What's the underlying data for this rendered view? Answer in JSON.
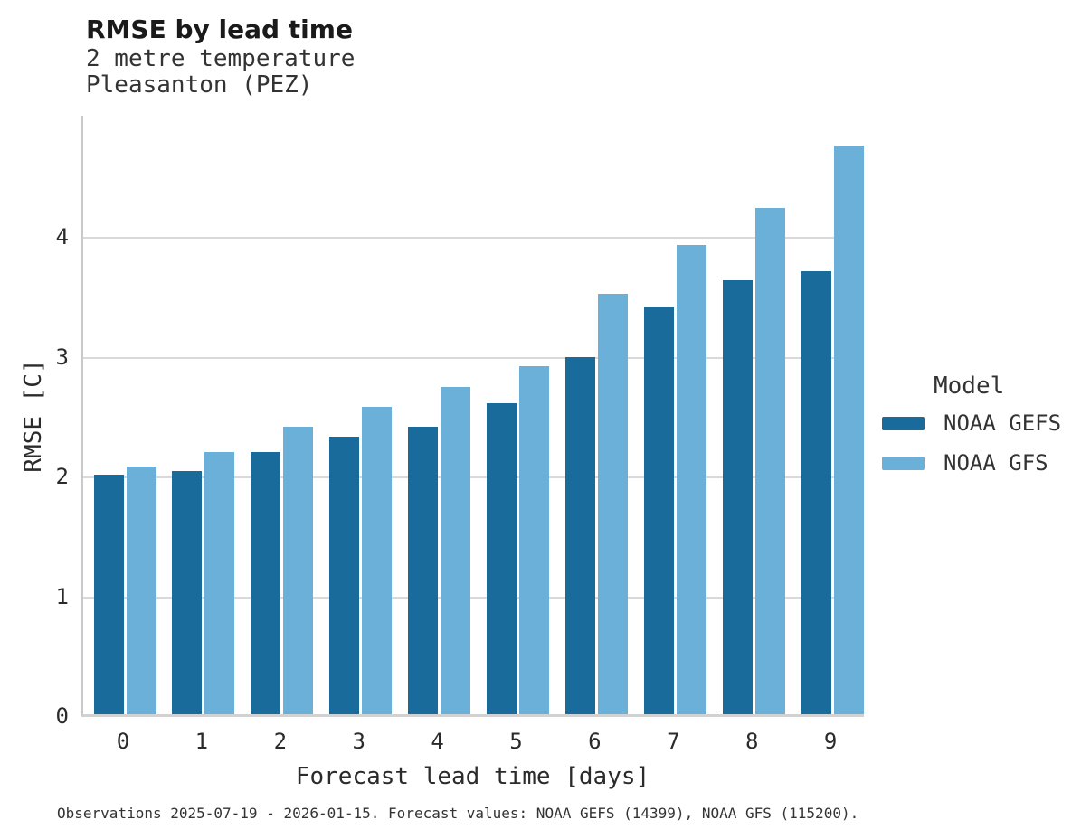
{
  "chart_data": {
    "type": "bar",
    "title": "RMSE by lead time",
    "subtitle": [
      "2 metre temperature",
      "Pleasanton (PEZ)"
    ],
    "categories": [
      "0",
      "1",
      "2",
      "3",
      "4",
      "5",
      "6",
      "7",
      "8",
      "9"
    ],
    "series": [
      {
        "name": "NOAA GEFS",
        "color": "#196B9B",
        "values": [
          2.0,
          2.03,
          2.19,
          2.32,
          2.4,
          2.6,
          2.98,
          3.4,
          3.62,
          3.7
        ]
      },
      {
        "name": "NOAA GFS",
        "color": "#6BB0D9",
        "values": [
          2.07,
          2.19,
          2.4,
          2.57,
          2.73,
          2.91,
          3.51,
          3.92,
          4.23,
          4.75
        ]
      }
    ],
    "xlabel": "Forecast lead time [days]",
    "ylabel": "RMSE [C]",
    "ylim": [
      0,
      5.02
    ],
    "yticks": [
      0,
      1,
      2,
      3,
      4
    ],
    "grid": "horizontal",
    "legend_title": "Model",
    "legend_position": "right",
    "caption": "Observations 2025-07-19 - 2026-01-15. Forecast values: NOAA GEFS (14399), NOAA GFS (115200)."
  },
  "colors": {
    "gefs": "#196B9B",
    "gfs": "#6BB0D9",
    "gridline": "#d9d9d9",
    "axis_spine": "#c9c9c9",
    "text": "#333333"
  }
}
